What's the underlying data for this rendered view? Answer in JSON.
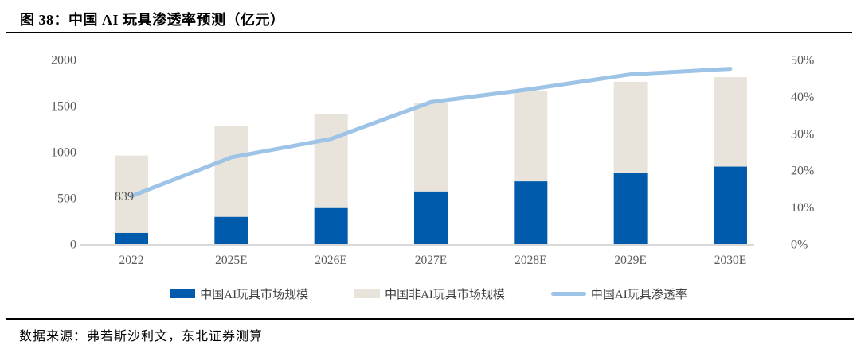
{
  "title": "图 38：中国 AI 玩具渗透率预测（亿元）",
  "source": "数据来源：弗若斯沙利文，东北证券测算",
  "colors": {
    "ai_bar": "#005BAC",
    "non_ai_bar": "#E8E4DB",
    "penetration_line": "#9DC3E6",
    "axis_text": "#595959",
    "axis_line": "#D9D9D9",
    "annotation_text": "#404040",
    "rule": "#000000"
  },
  "legend": [
    {
      "label": "中国AI玩具市场规模",
      "type": "bar",
      "color": "#005BAC"
    },
    {
      "label": "中国非AI玩具市场规模",
      "type": "bar",
      "color": "#E8E4DB"
    },
    {
      "label": "中国AI玩具渗透率",
      "type": "line",
      "color": "#9DC3E6"
    }
  ],
  "chart_data": {
    "type": "bar",
    "subtype": "stacked-bar-with-line",
    "title": "图 38：中国 AI 玩具渗透率预测（亿元）",
    "categories": [
      "2022",
      "2025E",
      "2026E",
      "2027E",
      "2028E",
      "2029E",
      "2030E"
    ],
    "series": [
      {
        "name": "中国AI玩具市场规模",
        "type": "bar",
        "stack": true,
        "axis": "left",
        "values": [
          121,
          295,
          390,
          570,
          680,
          775,
          840
        ]
      },
      {
        "name": "中国非AI玩具市场规模",
        "type": "bar",
        "stack": true,
        "axis": "left",
        "values": [
          839,
          990,
          1015,
          960,
          985,
          985,
          970
        ]
      },
      {
        "name": "中国AI玩具渗透率",
        "type": "line",
        "axis": "right",
        "values_pct": [
          13,
          23.5,
          28.5,
          38.5,
          42,
          46,
          47.5
        ]
      }
    ],
    "stacked_totals": [
      960,
      1285,
      1405,
      1530,
      1665,
      1760,
      1810
    ],
    "left_axis": {
      "ticks": [
        0,
        500,
        1000,
        1500,
        2000
      ],
      "lim": [
        0,
        2000
      ]
    },
    "right_axis": {
      "ticks": [
        "0%",
        "10%",
        "20%",
        "30%",
        "40%",
        "50%"
      ],
      "lim_pct": [
        0,
        50
      ]
    },
    "annotations": [
      {
        "text": "839",
        "category": "2022",
        "series": "中国非AI玩具市场规模"
      }
    ],
    "grid": false,
    "legend_position": "bottom",
    "xlabel": "",
    "ylabel": ""
  }
}
